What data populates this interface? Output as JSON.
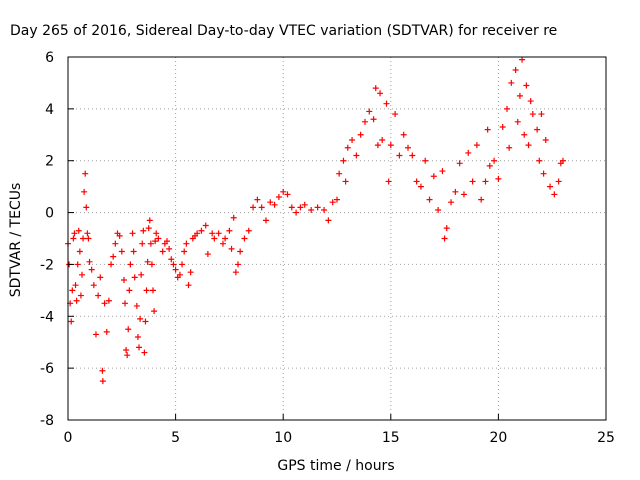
{
  "chart_data": {
    "type": "scatter",
    "title": "Day 265 of 2016, Sidereal Day-to-day VTEC variation (SDTVAR) for receiver re",
    "xlabel": "GPS time / hours",
    "ylabel": "SDTVAR / TECUs",
    "xlim": [
      0,
      25
    ],
    "ylim": [
      -8,
      6
    ],
    "xticks": [
      0,
      5,
      10,
      15,
      20,
      25
    ],
    "yticks": [
      -8,
      -6,
      -4,
      -2,
      0,
      2,
      4,
      6
    ],
    "grid": true,
    "marker": "plus",
    "color": "#ff0000",
    "series": [
      {
        "values": [
          [
            0.0,
            -1.2
          ],
          [
            0.05,
            -2.0
          ],
          [
            0.1,
            -3.5
          ],
          [
            0.15,
            -4.2
          ],
          [
            0.2,
            -3.0
          ],
          [
            0.25,
            -1.0
          ],
          [
            0.3,
            -0.8
          ],
          [
            0.35,
            -2.8
          ],
          [
            0.4,
            -3.4
          ],
          [
            0.45,
            -2.0
          ],
          [
            0.5,
            -0.7
          ],
          [
            0.55,
            -1.5
          ],
          [
            0.6,
            -3.2
          ],
          [
            0.65,
            -2.4
          ],
          [
            0.7,
            -1.0
          ],
          [
            0.75,
            0.8
          ],
          [
            0.8,
            1.5
          ],
          [
            0.85,
            0.2
          ],
          [
            0.9,
            -0.8
          ],
          [
            0.95,
            -1.0
          ],
          [
            1.0,
            -1.9
          ],
          [
            1.1,
            -2.2
          ],
          [
            1.2,
            -2.8
          ],
          [
            1.3,
            -4.7
          ],
          [
            1.4,
            -3.2
          ],
          [
            1.5,
            -2.5
          ],
          [
            1.6,
            -6.1
          ],
          [
            1.62,
            -6.5
          ],
          [
            1.7,
            -3.5
          ],
          [
            1.8,
            -4.6
          ],
          [
            1.9,
            -3.4
          ],
          [
            2.0,
            -2.0
          ],
          [
            2.1,
            -1.7
          ],
          [
            2.2,
            -1.2
          ],
          [
            2.3,
            -0.8
          ],
          [
            2.4,
            -0.9
          ],
          [
            2.5,
            -1.5
          ],
          [
            2.6,
            -2.6
          ],
          [
            2.65,
            -3.5
          ],
          [
            2.7,
            -5.3
          ],
          [
            2.75,
            -5.5
          ],
          [
            2.8,
            -4.5
          ],
          [
            2.85,
            -3.0
          ],
          [
            2.9,
            -2.0
          ],
          [
            3.0,
            -0.8
          ],
          [
            3.05,
            -1.5
          ],
          [
            3.1,
            -2.5
          ],
          [
            3.2,
            -3.6
          ],
          [
            3.25,
            -4.8
          ],
          [
            3.3,
            -5.2
          ],
          [
            3.35,
            -4.1
          ],
          [
            3.4,
            -2.4
          ],
          [
            3.45,
            -1.2
          ],
          [
            3.5,
            -0.7
          ],
          [
            3.55,
            -5.4
          ],
          [
            3.6,
            -4.2
          ],
          [
            3.65,
            -3.0
          ],
          [
            3.7,
            -1.9
          ],
          [
            3.75,
            -0.6
          ],
          [
            3.8,
            -0.3
          ],
          [
            3.85,
            -1.2
          ],
          [
            3.9,
            -2.0
          ],
          [
            3.95,
            -3.0
          ],
          [
            4.0,
            -3.8
          ],
          [
            4.05,
            -1.1
          ],
          [
            4.1,
            -0.8
          ],
          [
            4.2,
            -1.0
          ],
          [
            4.4,
            -1.5
          ],
          [
            4.5,
            -1.2
          ],
          [
            4.6,
            -1.1
          ],
          [
            4.7,
            -1.4
          ],
          [
            4.8,
            -1.8
          ],
          [
            4.9,
            -2.0
          ],
          [
            5.0,
            -2.2
          ],
          [
            5.1,
            -2.5
          ],
          [
            5.2,
            -2.4
          ],
          [
            5.3,
            -2.0
          ],
          [
            5.4,
            -1.5
          ],
          [
            5.5,
            -1.2
          ],
          [
            5.6,
            -2.8
          ],
          [
            5.7,
            -2.3
          ],
          [
            5.8,
            -1.0
          ],
          [
            5.9,
            -0.9
          ],
          [
            6.0,
            -0.8
          ],
          [
            6.2,
            -0.7
          ],
          [
            6.4,
            -0.5
          ],
          [
            6.5,
            -1.6
          ],
          [
            6.7,
            -0.8
          ],
          [
            6.8,
            -1.0
          ],
          [
            7.0,
            -0.8
          ],
          [
            7.2,
            -1.2
          ],
          [
            7.3,
            -1.0
          ],
          [
            7.5,
            -0.7
          ],
          [
            7.6,
            -1.4
          ],
          [
            7.7,
            -0.2
          ],
          [
            7.8,
            -2.3
          ],
          [
            7.9,
            -2.0
          ],
          [
            8.0,
            -1.5
          ],
          [
            8.2,
            -1.0
          ],
          [
            8.4,
            -0.7
          ],
          [
            8.6,
            0.2
          ],
          [
            8.8,
            0.5
          ],
          [
            9.0,
            0.2
          ],
          [
            9.2,
            -0.3
          ],
          [
            9.4,
            0.4
          ],
          [
            9.6,
            0.3
          ],
          [
            9.8,
            0.6
          ],
          [
            10.0,
            0.8
          ],
          [
            10.2,
            0.7
          ],
          [
            10.4,
            0.2
          ],
          [
            10.6,
            0.0
          ],
          [
            10.8,
            0.2
          ],
          [
            11.0,
            0.3
          ],
          [
            11.3,
            0.1
          ],
          [
            11.6,
            0.2
          ],
          [
            11.9,
            0.1
          ],
          [
            12.1,
            -0.3
          ],
          [
            12.3,
            0.4
          ],
          [
            12.5,
            0.5
          ],
          [
            12.6,
            1.5
          ],
          [
            12.8,
            2.0
          ],
          [
            12.9,
            1.2
          ],
          [
            13.0,
            2.5
          ],
          [
            13.2,
            2.8
          ],
          [
            13.4,
            2.2
          ],
          [
            13.6,
            3.0
          ],
          [
            13.8,
            3.5
          ],
          [
            14.0,
            3.9
          ],
          [
            14.2,
            3.6
          ],
          [
            14.3,
            4.8
          ],
          [
            14.4,
            2.6
          ],
          [
            14.5,
            4.6
          ],
          [
            14.6,
            2.8
          ],
          [
            14.8,
            4.2
          ],
          [
            14.9,
            1.2
          ],
          [
            15.0,
            2.6
          ],
          [
            15.2,
            3.8
          ],
          [
            15.4,
            2.2
          ],
          [
            15.6,
            3.0
          ],
          [
            15.8,
            2.5
          ],
          [
            16.0,
            2.2
          ],
          [
            16.2,
            1.2
          ],
          [
            16.4,
            1.0
          ],
          [
            16.6,
            2.0
          ],
          [
            16.8,
            0.5
          ],
          [
            17.0,
            1.4
          ],
          [
            17.2,
            0.1
          ],
          [
            17.4,
            1.6
          ],
          [
            17.5,
            -1.0
          ],
          [
            17.6,
            -0.6
          ],
          [
            17.8,
            0.4
          ],
          [
            18.0,
            0.8
          ],
          [
            18.2,
            1.9
          ],
          [
            18.4,
            0.7
          ],
          [
            18.6,
            2.3
          ],
          [
            18.8,
            1.2
          ],
          [
            19.0,
            2.6
          ],
          [
            19.2,
            0.5
          ],
          [
            19.4,
            1.2
          ],
          [
            19.5,
            3.2
          ],
          [
            19.6,
            1.8
          ],
          [
            19.8,
            2.0
          ],
          [
            20.0,
            1.3
          ],
          [
            20.2,
            3.3
          ],
          [
            20.4,
            4.0
          ],
          [
            20.5,
            2.5
          ],
          [
            20.6,
            5.0
          ],
          [
            20.8,
            5.5
          ],
          [
            20.9,
            3.5
          ],
          [
            21.0,
            4.5
          ],
          [
            21.1,
            5.9
          ],
          [
            21.2,
            3.0
          ],
          [
            21.3,
            4.9
          ],
          [
            21.4,
            2.6
          ],
          [
            21.5,
            4.3
          ],
          [
            21.6,
            3.8
          ],
          [
            21.8,
            3.2
          ],
          [
            21.9,
            2.0
          ],
          [
            22.0,
            3.8
          ],
          [
            22.1,
            1.5
          ],
          [
            22.2,
            2.8
          ],
          [
            22.4,
            1.0
          ],
          [
            22.6,
            0.7
          ],
          [
            22.8,
            1.2
          ],
          [
            22.9,
            1.9
          ],
          [
            23.0,
            2.0
          ]
        ]
      }
    ]
  }
}
